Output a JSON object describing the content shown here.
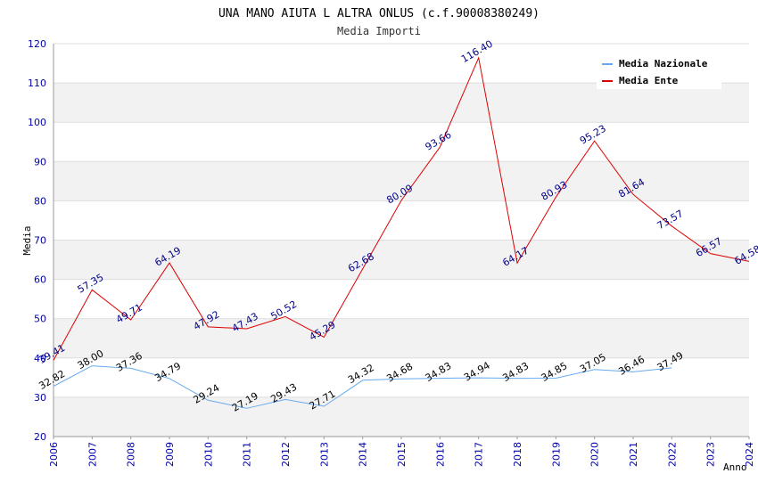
{
  "chart_data": {
    "type": "line",
    "title": "UNA MANO AIUTA L ALTRA ONLUS (c.f.90008380249)",
    "subtitle": "Media Importi",
    "xlabel": "Anno",
    "ylabel": "Media",
    "ylim": [
      20,
      120
    ],
    "yticks": [
      "20",
      "30",
      "40",
      "50",
      "60",
      "70",
      "80",
      "90",
      "100",
      "110",
      "120"
    ],
    "categories": [
      "2006",
      "2007",
      "2008",
      "2009",
      "2010",
      "2011",
      "2012",
      "2013",
      "2014",
      "2015",
      "2016",
      "2017",
      "2018",
      "2019",
      "2020",
      "2021",
      "2022",
      "2023",
      "2024"
    ],
    "legend_position": "top-right",
    "grid": true,
    "series": [
      {
        "name": "Media Nazionale",
        "color": "#66aaee",
        "label_color": "#000000",
        "values": [
          32.82,
          38.0,
          37.36,
          34.79,
          29.24,
          27.19,
          29.43,
          27.71,
          34.32,
          34.68,
          34.83,
          34.94,
          34.83,
          34.85,
          37.05,
          36.46,
          37.49,
          null,
          null
        ],
        "labels": [
          "32.82",
          "38.00",
          "37.36",
          "34.79",
          "29.24",
          "27.19",
          "29.43",
          "27.71",
          "34.32",
          "34.68",
          "34.83",
          "34.94",
          "34.83",
          "34.85",
          "37.05",
          "36.46",
          "37.49",
          null,
          null
        ]
      },
      {
        "name": "Media Ente",
        "color": "#dd0000",
        "label_color": "#000088",
        "values": [
          39.41,
          57.35,
          49.71,
          64.19,
          47.92,
          47.43,
          50.52,
          45.29,
          62.68,
          80.09,
          93.66,
          116.4,
          64.17,
          80.93,
          95.23,
          81.64,
          73.57,
          66.57,
          64.58
        ],
        "labels": [
          "39.41",
          "57.35",
          "49.71",
          "64.19",
          "47.92",
          "47.43",
          "50.52",
          "45.29",
          "62.68",
          "80.09",
          "93.66",
          "116.40",
          "64.17",
          "80.93",
          "95.23",
          "81.64",
          "73.57",
          "66.57",
          "64.58"
        ]
      }
    ]
  }
}
